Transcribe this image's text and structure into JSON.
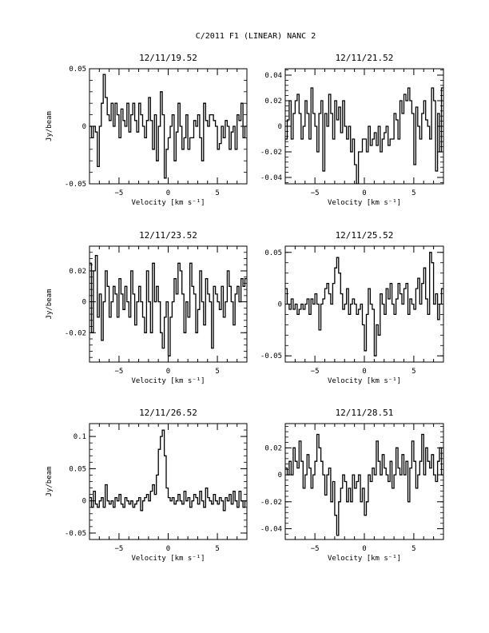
{
  "page": {
    "title": "C/2011 F1 (LINEAR)   NANC       2"
  },
  "chart_data": [
    {
      "type": "line",
      "title": "12/11/19.52",
      "xlabel": "Velocity [km s⁻¹]",
      "ylabel": "Jy/beam",
      "xlim": [
        -8,
        8
      ],
      "ylim": [
        -0.05,
        0.05
      ],
      "xticks": [
        -5,
        0,
        5
      ],
      "yticks": [
        -0.05,
        0,
        0.05
      ],
      "ytick_labels": [
        "-0.05",
        "0",
        "0.05"
      ],
      "x": [
        -8.0,
        -7.8,
        -7.6,
        -7.4,
        -7.2,
        -7.0,
        -6.8,
        -6.6,
        -6.4,
        -6.2,
        -6.0,
        -5.8,
        -5.6,
        -5.4,
        -5.2,
        -5.0,
        -4.8,
        -4.6,
        -4.4,
        -4.2,
        -4.0,
        -3.8,
        -3.6,
        -3.4,
        -3.2,
        -3.0,
        -2.8,
        -2.6,
        -2.4,
        -2.2,
        -2.0,
        -1.8,
        -1.6,
        -1.4,
        -1.2,
        -1.0,
        -0.8,
        -0.6,
        -0.4,
        -0.2,
        0.0,
        0.2,
        0.4,
        0.6,
        0.8,
        1.0,
        1.2,
        1.4,
        1.6,
        1.8,
        2.0,
        2.2,
        2.4,
        2.6,
        2.8,
        3.0,
        3.2,
        3.4,
        3.6,
        3.8,
        4.0,
        4.2,
        4.4,
        4.6,
        4.8,
        5.0,
        5.2,
        5.4,
        5.6,
        5.8,
        6.0,
        6.2,
        6.4,
        6.6,
        6.8,
        7.0,
        7.2,
        7.4,
        7.6,
        7.8
      ],
      "y": [
        0.0,
        -0.01,
        0.0,
        -0.005,
        -0.035,
        0.0,
        0.02,
        0.045,
        0.025,
        0.01,
        0.005,
        0.02,
        0.0,
        0.02,
        0.01,
        -0.01,
        0.015,
        0.005,
        0.0,
        0.02,
        -0.005,
        0.01,
        0.02,
        0.005,
        -0.005,
        0.02,
        0.01,
        0.0,
        -0.01,
        0.005,
        0.025,
        0.005,
        -0.02,
        0.01,
        -0.03,
        0.0,
        0.03,
        0.01,
        -0.045,
        -0.02,
        -0.01,
        0.0,
        0.01,
        -0.03,
        -0.005,
        0.02,
        0.0,
        -0.02,
        -0.01,
        0.01,
        -0.02,
        -0.01,
        -0.01,
        0.005,
        0.0,
        0.01,
        -0.01,
        -0.03,
        0.02,
        0.005,
        0.0,
        0.01,
        0.01,
        0.005,
        0.0,
        -0.02,
        -0.015,
        0.0,
        -0.01,
        0.005,
        0.0,
        -0.02,
        -0.005,
        0.0,
        -0.02,
        0.01,
        0.005,
        0.02,
        -0.01,
        0.0
      ]
    },
    {
      "type": "line",
      "title": "12/11/21.52",
      "xlabel": "Velocity [km s⁻¹]",
      "ylabel": "",
      "xlim": [
        -8,
        8
      ],
      "ylim": [
        -0.045,
        0.045
      ],
      "xticks": [
        -5,
        0,
        5
      ],
      "yticks": [
        -0.04,
        -0.02,
        0,
        0.02,
        0.04
      ],
      "ytick_labels": [
        "-0.04",
        "-0.02",
        "0",
        "0.02",
        "0.04"
      ],
      "x": [
        -8.0,
        -7.8,
        -7.6,
        -7.4,
        -7.2,
        -7.0,
        -6.8,
        -6.6,
        -6.4,
        -6.2,
        -6.0,
        -5.8,
        -5.6,
        -5.4,
        -5.2,
        -5.0,
        -4.8,
        -4.6,
        -4.4,
        -4.2,
        -4.0,
        -3.8,
        -3.6,
        -3.4,
        -3.2,
        -3.0,
        -2.8,
        -2.6,
        -2.4,
        -2.2,
        -2.0,
        -1.8,
        -1.6,
        -1.4,
        -1.2,
        -1.0,
        -0.8,
        -0.6,
        -0.4,
        -0.2,
        0.0,
        0.2,
        0.4,
        0.6,
        0.8,
        1.0,
        1.2,
        1.4,
        1.6,
        1.8,
        2.0,
        2.2,
        2.4,
        2.6,
        2.8,
        3.0,
        3.2,
        3.4,
        3.6,
        3.8,
        4.0,
        4.2,
        4.4,
        4.6,
        4.8,
        5.0,
        5.2,
        5.4,
        5.6,
        5.8,
        6.0,
        6.2,
        6.4,
        6.6,
        6.8,
        7.0,
        7.2,
        7.4,
        7.6,
        7.8
      ],
      "y": [
        -0.01,
        0.005,
        0.02,
        -0.01,
        0.01,
        0.02,
        0.025,
        0.01,
        -0.01,
        0.0,
        0.02,
        0.01,
        -0.01,
        0.03,
        0.01,
        0.0,
        -0.02,
        0.01,
        0.02,
        -0.035,
        0.01,
        0.0,
        0.025,
        0.01,
        -0.01,
        0.02,
        0.005,
        0.015,
        -0.005,
        0.02,
        0.0,
        -0.01,
        0.0,
        -0.02,
        -0.01,
        -0.03,
        -0.045,
        -0.02,
        -0.02,
        -0.01,
        -0.01,
        -0.02,
        0.0,
        -0.015,
        -0.01,
        -0.005,
        -0.015,
        0.0,
        -0.02,
        -0.01,
        -0.005,
        0.0,
        -0.015,
        -0.01,
        -0.01,
        0.01,
        0.005,
        -0.01,
        0.02,
        0.01,
        0.025,
        0.02,
        0.03,
        0.02,
        0.01,
        -0.03,
        0.015,
        0.0,
        -0.01,
        0.01,
        0.02,
        0.005,
        0.0,
        -0.01,
        0.03,
        0.02,
        -0.035,
        0.01,
        -0.02,
        0.03
      ]
    },
    {
      "type": "line",
      "title": "12/11/23.52",
      "xlabel": "Velocity [km s⁻¹]",
      "ylabel": "Jy/beam",
      "xlim": [
        -8,
        8
      ],
      "ylim": [
        -0.039,
        0.036
      ],
      "xticks": [
        -5,
        0,
        5
      ],
      "yticks": [
        -0.02,
        0,
        0.02
      ],
      "ytick_labels": [
        "-0.02",
        "0",
        "0.02"
      ],
      "x": [
        -8.0,
        -7.8,
        -7.6,
        -7.4,
        -7.2,
        -7.0,
        -6.8,
        -6.6,
        -6.4,
        -6.2,
        -6.0,
        -5.8,
        -5.6,
        -5.4,
        -5.2,
        -5.0,
        -4.8,
        -4.6,
        -4.4,
        -4.2,
        -4.0,
        -3.8,
        -3.6,
        -3.4,
        -3.2,
        -3.0,
        -2.8,
        -2.6,
        -2.4,
        -2.2,
        -2.0,
        -1.8,
        -1.6,
        -1.4,
        -1.2,
        -1.0,
        -0.8,
        -0.6,
        -0.4,
        -0.2,
        0.0,
        0.2,
        0.4,
        0.6,
        0.8,
        1.0,
        1.2,
        1.4,
        1.6,
        1.8,
        2.0,
        2.2,
        2.4,
        2.6,
        2.8,
        3.0,
        3.2,
        3.4,
        3.6,
        3.8,
        4.0,
        4.2,
        4.4,
        4.6,
        4.8,
        5.0,
        5.2,
        5.4,
        5.6,
        5.8,
        6.0,
        6.2,
        6.4,
        6.6,
        6.8,
        7.0,
        7.2,
        7.4,
        7.6,
        7.8
      ],
      "y": [
        0.025,
        -0.02,
        0.02,
        0.03,
        -0.01,
        0.005,
        -0.025,
        0.0,
        0.02,
        0.01,
        -0.01,
        0.0,
        0.01,
        0.005,
        -0.01,
        0.015,
        0.005,
        -0.005,
        0.01,
        0.0,
        -0.01,
        0.02,
        0.005,
        -0.015,
        0.0,
        0.01,
        0.0,
        -0.01,
        -0.02,
        0.02,
        0.0,
        -0.02,
        0.025,
        0.0,
        0.01,
        0.0,
        -0.02,
        -0.03,
        -0.01,
        0.0,
        -0.035,
        -0.01,
        0.0,
        0.015,
        0.005,
        0.025,
        0.02,
        0.005,
        -0.02,
        0.0,
        -0.01,
        0.025,
        0.01,
        0.005,
        -0.02,
        -0.005,
        0.02,
        0.0,
        -0.015,
        0.015,
        0.005,
        0.0,
        -0.03,
        0.01,
        0.005,
        0.0,
        -0.005,
        0.01,
        -0.01,
        0.0,
        0.02,
        0.01,
        0.0,
        -0.015,
        0.005,
        0.01,
        0.0,
        0.015,
        0.01,
        0.015
      ]
    },
    {
      "type": "line",
      "title": "12/11/25.52",
      "xlabel": "Velocity [km s⁻¹]",
      "ylabel": "",
      "xlim": [
        -8,
        8
      ],
      "ylim": [
        -0.056,
        0.056
      ],
      "xticks": [
        -5,
        0,
        5
      ],
      "yticks": [
        -0.05,
        0,
        0.05
      ],
      "ytick_labels": [
        "-0.05",
        "0",
        "0.05"
      ],
      "x": [
        -8.0,
        -7.8,
        -7.6,
        -7.4,
        -7.2,
        -7.0,
        -6.8,
        -6.6,
        -6.4,
        -6.2,
        -6.0,
        -5.8,
        -5.6,
        -5.4,
        -5.2,
        -5.0,
        -4.8,
        -4.6,
        -4.4,
        -4.2,
        -4.0,
        -3.8,
        -3.6,
        -3.4,
        -3.2,
        -3.0,
        -2.8,
        -2.6,
        -2.4,
        -2.2,
        -2.0,
        -1.8,
        -1.6,
        -1.4,
        -1.2,
        -1.0,
        -0.8,
        -0.6,
        -0.4,
        -0.2,
        0.0,
        0.2,
        0.4,
        0.6,
        0.8,
        1.0,
        1.2,
        1.4,
        1.6,
        1.8,
        2.0,
        2.2,
        2.4,
        2.6,
        2.8,
        3.0,
        3.2,
        3.4,
        3.6,
        3.8,
        4.0,
        4.2,
        4.4,
        4.6,
        4.8,
        5.0,
        5.2,
        5.4,
        5.6,
        5.8,
        6.0,
        6.2,
        6.4,
        6.6,
        6.8,
        7.0,
        7.2,
        7.4,
        7.6,
        7.8
      ],
      "y": [
        0.015,
        0.0,
        -0.005,
        0.005,
        -0.005,
        0.0,
        -0.01,
        -0.005,
        0.0,
        -0.005,
        0.0,
        0.005,
        -0.01,
        0.005,
        0.0,
        0.01,
        0.0,
        -0.025,
        0.0,
        0.005,
        0.015,
        0.02,
        0.01,
        0.0,
        0.02,
        0.035,
        0.045,
        0.03,
        0.01,
        -0.005,
        0.0,
        0.015,
        -0.01,
        0.0,
        0.005,
        0.0,
        -0.01,
        -0.005,
        0.0,
        -0.02,
        -0.045,
        -0.01,
        0.015,
        0.0,
        -0.005,
        -0.05,
        -0.02,
        -0.03,
        0.01,
        0.0,
        -0.01,
        0.015,
        0.005,
        0.02,
        0.0,
        -0.01,
        0.005,
        0.02,
        0.01,
        0.0,
        0.015,
        0.02,
        -0.01,
        0.005,
        0.0,
        -0.005,
        0.015,
        0.025,
        0.0,
        0.02,
        0.035,
        0.005,
        -0.01,
        0.05,
        0.04,
        0.0,
        0.01,
        -0.015,
        0.0,
        0.015
      ]
    },
    {
      "type": "line",
      "title": "12/11/26.52",
      "xlabel": "Velocity [km s⁻¹]",
      "ylabel": "Jy/beam",
      "xlim": [
        -8,
        8
      ],
      "ylim": [
        -0.06,
        0.12
      ],
      "xticks": [
        -5,
        0,
        5
      ],
      "yticks": [
        -0.05,
        0,
        0.05,
        0.1
      ],
      "ytick_labels": [
        "-0.05",
        "0",
        "0.05",
        "0.1"
      ],
      "x": [
        -8.0,
        -7.8,
        -7.6,
        -7.4,
        -7.2,
        -7.0,
        -6.8,
        -6.6,
        -6.4,
        -6.2,
        -6.0,
        -5.8,
        -5.6,
        -5.4,
        -5.2,
        -5.0,
        -4.8,
        -4.6,
        -4.4,
        -4.2,
        -4.0,
        -3.8,
        -3.6,
        -3.4,
        -3.2,
        -3.0,
        -2.8,
        -2.6,
        -2.4,
        -2.2,
        -2.0,
        -1.8,
        -1.6,
        -1.4,
        -1.2,
        -1.0,
        -0.8,
        -0.6,
        -0.4,
        -0.2,
        0.0,
        0.2,
        0.4,
        0.6,
        0.8,
        1.0,
        1.2,
        1.4,
        1.6,
        1.8,
        2.0,
        2.2,
        2.4,
        2.6,
        2.8,
        3.0,
        3.2,
        3.4,
        3.6,
        3.8,
        4.0,
        4.2,
        4.4,
        4.6,
        4.8,
        5.0,
        5.2,
        5.4,
        5.6,
        5.8,
        6.0,
        6.2,
        6.4,
        6.6,
        6.8,
        7.0,
        7.2,
        7.4,
        7.6,
        7.8
      ],
      "y": [
        0.005,
        -0.01,
        0.015,
        -0.005,
        -0.01,
        0.0,
        0.005,
        -0.01,
        0.025,
        0.0,
        -0.005,
        0.0,
        -0.01,
        0.005,
        0.0,
        0.01,
        -0.005,
        -0.01,
        0.005,
        0.0,
        -0.005,
        0.0,
        -0.01,
        -0.005,
        0.0,
        0.005,
        -0.015,
        0.0,
        0.005,
        0.01,
        0.0,
        0.015,
        0.025,
        0.01,
        0.04,
        0.08,
        0.1,
        0.11,
        0.07,
        0.02,
        0.005,
        0.0,
        0.005,
        -0.005,
        0.0,
        0.01,
        0.0,
        -0.005,
        0.015,
        0.0,
        0.005,
        -0.01,
        0.0,
        0.01,
        0.005,
        -0.005,
        0.015,
        0.0,
        -0.01,
        0.02,
        0.005,
        0.0,
        -0.005,
        0.01,
        0.0,
        -0.005,
        0.005,
        0.0,
        -0.015,
        0.005,
        0.0,
        0.01,
        -0.005,
        0.015,
        0.0,
        -0.01,
        0.015,
        0.0,
        -0.01,
        0.0
      ]
    },
    {
      "type": "line",
      "title": "12/11/28.51",
      "xlabel": "Velocity [km s⁻¹]",
      "ylabel": "",
      "xlim": [
        -8,
        8
      ],
      "ylim": [
        -0.048,
        0.038
      ],
      "xticks": [
        -5,
        0,
        5
      ],
      "yticks": [
        -0.04,
        -0.02,
        0,
        0.02
      ],
      "ytick_labels": [
        "-0.04",
        "-0.02",
        "0",
        "0.02"
      ],
      "x": [
        -8.0,
        -7.8,
        -7.6,
        -7.4,
        -7.2,
        -7.0,
        -6.8,
        -6.6,
        -6.4,
        -6.2,
        -6.0,
        -5.8,
        -5.6,
        -5.4,
        -5.2,
        -5.0,
        -4.8,
        -4.6,
        -4.4,
        -4.2,
        -4.0,
        -3.8,
        -3.6,
        -3.4,
        -3.2,
        -3.0,
        -2.8,
        -2.6,
        -2.4,
        -2.2,
        -2.0,
        -1.8,
        -1.6,
        -1.4,
        -1.2,
        -1.0,
        -0.8,
        -0.6,
        -0.4,
        -0.2,
        0.0,
        0.2,
        0.4,
        0.6,
        0.8,
        1.0,
        1.2,
        1.4,
        1.6,
        1.8,
        2.0,
        2.2,
        2.4,
        2.6,
        2.8,
        3.0,
        3.2,
        3.4,
        3.6,
        3.8,
        4.0,
        4.2,
        4.4,
        4.6,
        4.8,
        5.0,
        5.2,
        5.4,
        5.6,
        5.8,
        6.0,
        6.2,
        6.4,
        6.6,
        6.8,
        7.0,
        7.2,
        7.4,
        7.6,
        7.8
      ],
      "y": [
        0.005,
        0.0,
        0.01,
        0.0,
        0.02,
        0.01,
        0.005,
        0.025,
        0.01,
        -0.01,
        0.0,
        0.015,
        0.005,
        -0.01,
        0.0,
        0.01,
        0.03,
        0.02,
        0.01,
        0.0,
        -0.015,
        0.0,
        0.005,
        -0.02,
        -0.005,
        -0.03,
        -0.045,
        -0.02,
        -0.01,
        0.0,
        -0.005,
        -0.02,
        -0.01,
        -0.02,
        0.0,
        -0.01,
        -0.005,
        0.0,
        -0.02,
        -0.01,
        -0.03,
        -0.02,
        0.0,
        -0.005,
        0.005,
        0.0,
        0.025,
        0.01,
        0.0,
        0.015,
        0.005,
        0.0,
        -0.005,
        0.01,
        -0.01,
        0.0,
        0.02,
        0.005,
        0.0,
        0.015,
        0.0,
        0.01,
        -0.02,
        0.005,
        0.025,
        0.01,
        -0.01,
        0.0,
        0.01,
        0.03,
        0.0,
        0.02,
        0.01,
        0.005,
        0.015,
        0.0,
        -0.005,
        0.01,
        0.02,
        0.0
      ]
    }
  ]
}
